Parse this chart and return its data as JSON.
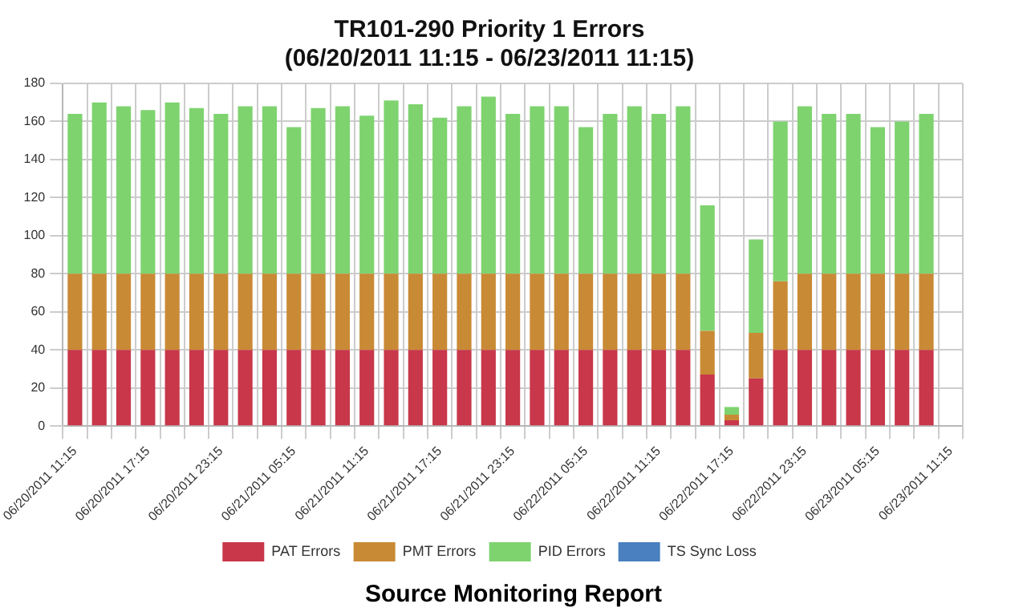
{
  "chart_data": {
    "type": "bar",
    "stacked": true,
    "title": "TR101-290 Priority 1 Errors",
    "subtitle": "(06/20/2011 11:15 - 06/23/2011 11:15)",
    "categories": [
      "06/20/2011 11:15",
      null,
      null,
      "06/20/2011 17:15",
      null,
      null,
      "06/20/2011 23:15",
      null,
      null,
      "06/21/2011 05:15",
      null,
      null,
      "06/21/2011 11:15",
      null,
      null,
      "06/21/2011 17:15",
      null,
      null,
      "06/21/2011 23:15",
      null,
      null,
      "06/22/2011 05:15",
      null,
      null,
      "06/22/2011 11:15",
      null,
      null,
      "06/22/2011 17:15",
      null,
      null,
      "06/22/2011 23:15",
      null,
      null,
      "06/23/2011 05:15",
      null,
      null,
      "06/23/2011 11:15"
    ],
    "series": [
      {
        "name": "PAT Errors",
        "color": "#c8374a",
        "values": [
          40,
          40,
          40,
          40,
          40,
          40,
          40,
          40,
          40,
          40,
          40,
          40,
          40,
          40,
          40,
          40,
          40,
          40,
          40,
          40,
          40,
          40,
          40,
          40,
          40,
          40,
          27,
          3,
          25,
          40,
          40,
          40,
          40,
          40,
          40,
          40,
          null
        ]
      },
      {
        "name": "PMT Errors",
        "color": "#c98a35",
        "values": [
          40,
          40,
          40,
          40,
          40,
          40,
          40,
          40,
          40,
          40,
          40,
          40,
          40,
          40,
          40,
          40,
          40,
          40,
          40,
          40,
          40,
          40,
          40,
          40,
          40,
          40,
          23,
          3,
          24,
          36,
          40,
          40,
          40,
          40,
          40,
          40,
          null
        ]
      },
      {
        "name": "PID Errors",
        "color": "#7ed36f",
        "values": [
          84,
          90,
          88,
          86,
          90,
          87,
          84,
          88,
          88,
          77,
          87,
          88,
          83,
          91,
          89,
          82,
          88,
          93,
          84,
          88,
          88,
          77,
          84,
          88,
          84,
          88,
          66,
          4,
          49,
          84,
          88,
          84,
          84,
          77,
          80,
          84,
          null
        ]
      },
      {
        "name": "TS Sync Loss",
        "color": "#4a7fc0",
        "values": [
          0,
          0,
          0,
          0,
          0,
          0,
          0,
          0,
          0,
          0,
          0,
          0,
          0,
          0,
          0,
          0,
          0,
          0,
          0,
          0,
          0,
          0,
          0,
          0,
          0,
          0,
          0,
          0,
          0,
          0,
          0,
          0,
          0,
          0,
          0,
          0,
          null
        ]
      }
    ],
    "ylim": [
      0,
      180
    ],
    "yticks": [
      0,
      20,
      40,
      60,
      80,
      100,
      120,
      140,
      160,
      180
    ],
    "grid": true,
    "legend": "bottom",
    "annotations": [
      "Source Monitoring Report"
    ]
  }
}
